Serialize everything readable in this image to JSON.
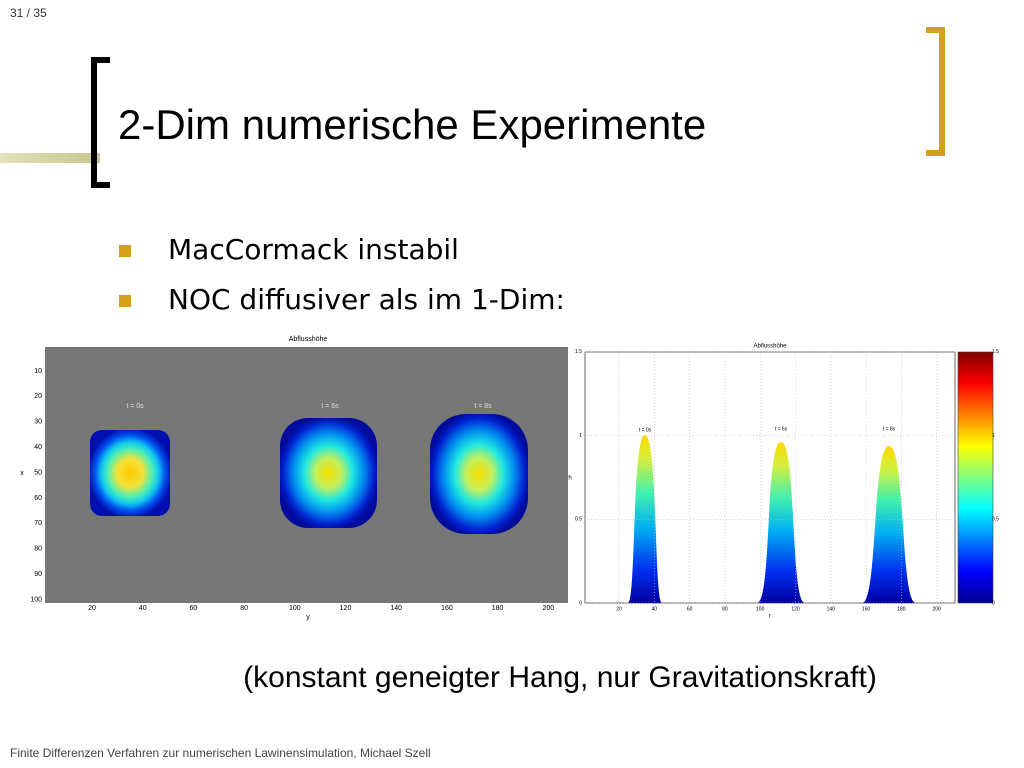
{
  "page_number": "31 / 35",
  "title": "2-Dim numerische Experimente",
  "bullets": [
    "MacCormack instabil",
    "NOC diffusiver als im 1-Dim:"
  ],
  "figure_left": {
    "title": "Abflusshöhe",
    "xlabel": "y",
    "ylabel": "x",
    "xticks": [
      20,
      40,
      60,
      80,
      100,
      120,
      140,
      160,
      180,
      200
    ],
    "yticks": [
      10,
      20,
      30,
      40,
      50,
      60,
      70,
      80,
      90,
      100
    ],
    "annotations": [
      "t = 0s",
      "t = 6s",
      "t = 8s"
    ]
  },
  "figure_right": {
    "title": "Abflusshöhe",
    "xlabel": "r",
    "ylabel": "h",
    "xticks": [
      20,
      40,
      60,
      80,
      100,
      120,
      140,
      160,
      180,
      200
    ],
    "yticks": [
      0,
      0.5,
      1,
      1.5
    ],
    "annotations": [
      "t = 0s",
      "t = 6s",
      "t = 8s"
    ],
    "colorbar_ticks": [
      0,
      0.5,
      1,
      1.5
    ]
  },
  "caption": "(konstant geneigter Hang, nur Gravitationskraft)",
  "footer": "Finite Differenzen Verfahren zur numerischen Lawinensimulation, Michael Szell"
}
